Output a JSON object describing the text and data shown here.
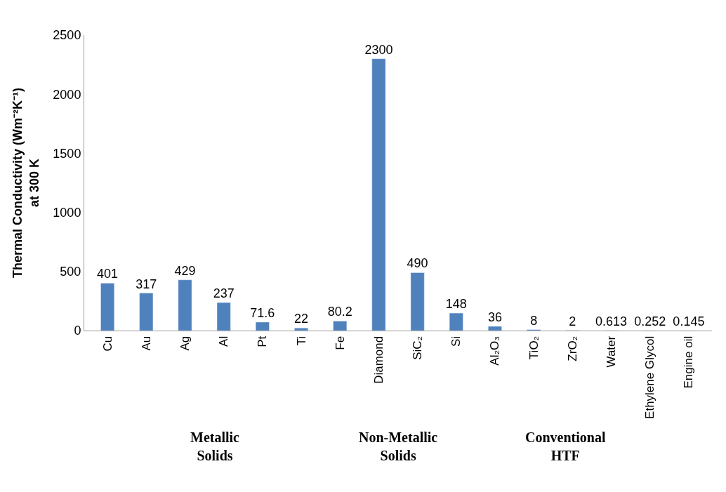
{
  "chart_data": {
    "type": "bar",
    "ylabel": "Thermal Conductivity (Wm⁻²K⁻¹)\nat 300 K",
    "categories": [
      "Cu",
      "Au",
      "Ag",
      "Al",
      "Pt",
      "Ti",
      "Fe",
      "Diamond",
      "SiC₂",
      "Si",
      "Al₂O₃",
      "TiO₂",
      "ZrO₂",
      "Water",
      "Ethylene Glycol",
      "Engine oil"
    ],
    "values": [
      401,
      317,
      429,
      237,
      71.6,
      22,
      80.2,
      2300,
      490,
      148,
      36,
      8,
      2,
      0.613,
      0.252,
      0.145
    ],
    "color": "#4f81bd",
    "ylim": [
      0,
      2500
    ],
    "yticks": [
      0,
      500,
      1000,
      1500,
      2000,
      2500
    ],
    "data_labels": true,
    "legend": false,
    "annotations": [
      "Metallic\nSolids",
      "Non-Metallic\nSolids",
      "Conventional\nHTF"
    ]
  }
}
